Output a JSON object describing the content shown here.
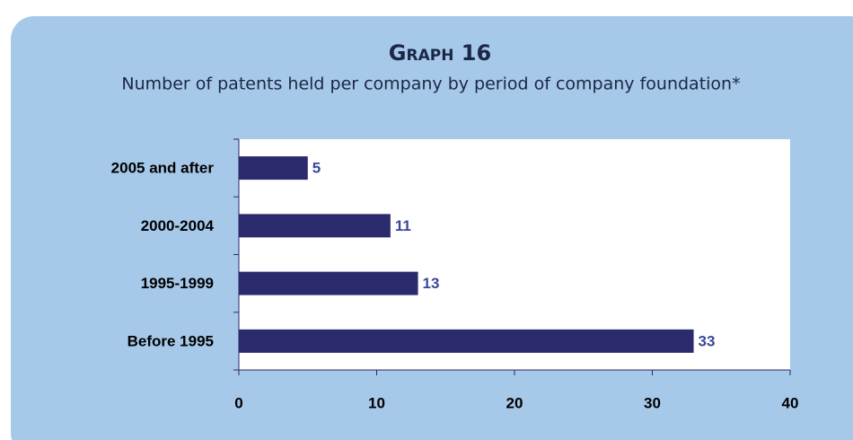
{
  "chart_data": {
    "type": "bar",
    "orientation": "horizontal",
    "title": "Graph 16",
    "subtitle": "Number of patents held per company by period of company foundation*",
    "categories": [
      "2005 and after",
      "2000-2004",
      "1995-1999",
      "Before 1995"
    ],
    "values": [
      5,
      11,
      13,
      33
    ],
    "color": "#2a2a6c",
    "xlim": [
      0,
      40
    ],
    "xticks": [
      0,
      10,
      20,
      30,
      40
    ]
  }
}
